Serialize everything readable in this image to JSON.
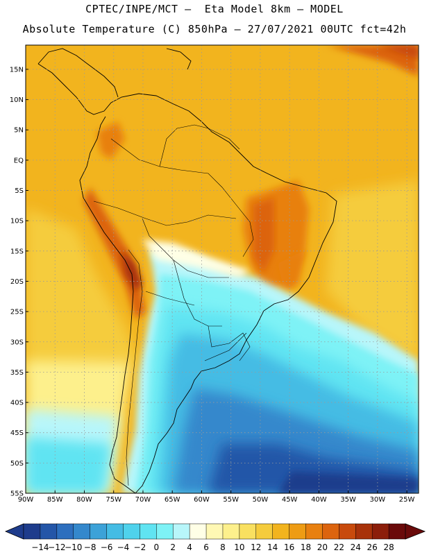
{
  "title": {
    "line1": "CPTEC/INPE/MCT –  Eta Model 8km – MODEL",
    "line2": "Absolute Temperature (C) 850hPa – 27/07/2021 00UTC fct=42h"
  },
  "map": {
    "lat_labels": [
      "15N",
      "10N",
      "5N",
      "EQ",
      "5S",
      "10S",
      "15S",
      "20S",
      "25S",
      "30S",
      "35S",
      "40S",
      "45S",
      "50S",
      "55S"
    ],
    "lon_labels": [
      "90W",
      "85W",
      "80W",
      "75W",
      "70W",
      "65W",
      "60W",
      "55W",
      "50W",
      "45W",
      "40W",
      "35W",
      "30W",
      "25W"
    ],
    "extent": {
      "lon_min": -90,
      "lon_max": -23,
      "lat_min": -55,
      "lat_max": 19
    },
    "gridlines": "dotted"
  },
  "colorbar": {
    "labels": [
      "-14",
      "-12",
      "-10",
      "-8",
      "-6",
      "-4",
      "-2",
      "0",
      "2",
      "4",
      "6",
      "8",
      "10",
      "12",
      "14",
      "16",
      "18",
      "20",
      "22",
      "24",
      "26",
      "28"
    ],
    "colors": [
      "#1e3c8c",
      "#2456a8",
      "#2d6fbe",
      "#3488cc",
      "#3ca2d8",
      "#44bce4",
      "#4fd2ec",
      "#60e4f2",
      "#7ef2f6",
      "#b8f6fa",
      "#ffffe6",
      "#fff8b4",
      "#fdf08c",
      "#f9e060",
      "#f5cc3c",
      "#f2b41e",
      "#ee9c14",
      "#e88010",
      "#dc640e",
      "#c84a0c",
      "#a8320a",
      "#8c1e0a",
      "#6a0a0a"
    ],
    "under_color": "#1e3c8c",
    "over_color": "#6a0a0a"
  }
}
